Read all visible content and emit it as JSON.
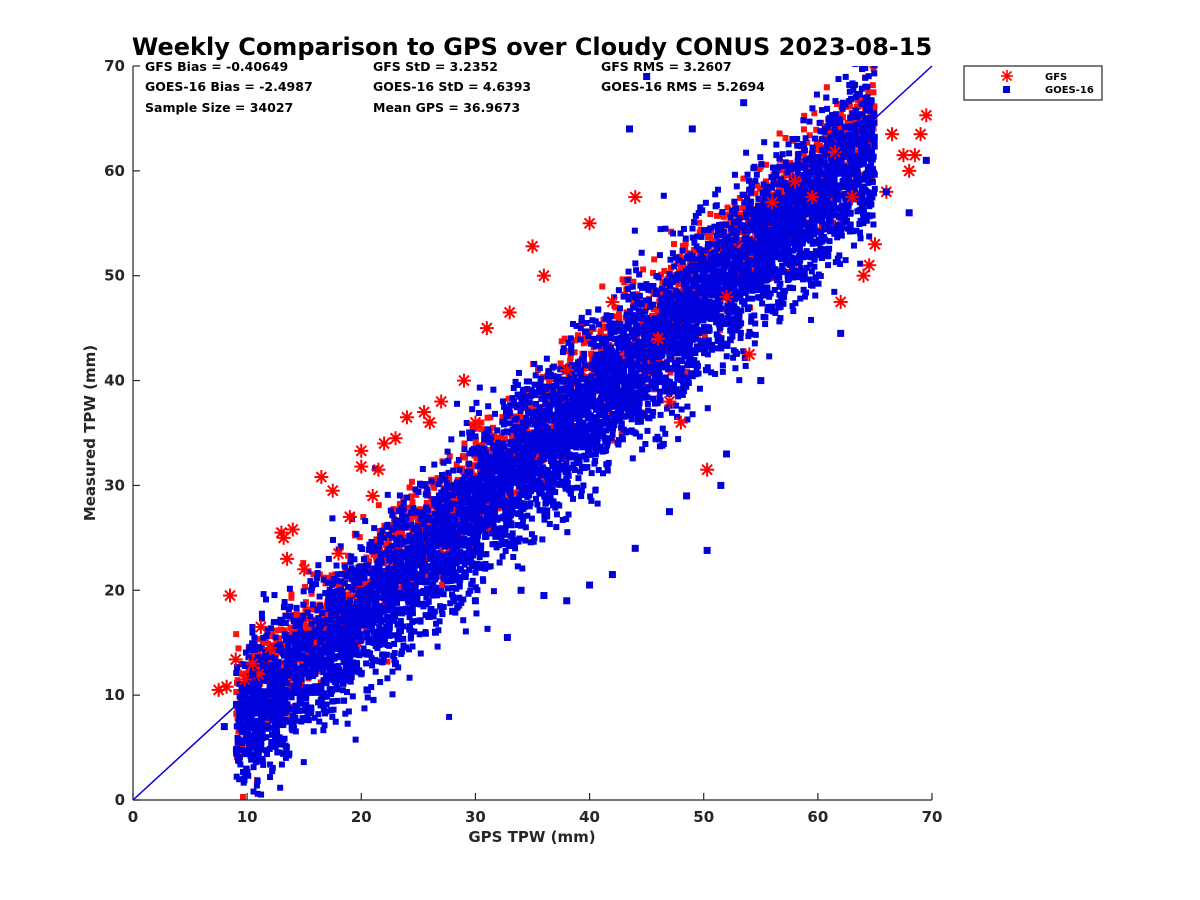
{
  "chart_data": {
    "type": "scatter",
    "title": "Weekly Comparison to GPS over Cloudy CONUS 2023-08-15",
    "xlabel": "GPS TPW (mm)",
    "ylabel": "Measured TPW (mm)",
    "xlim": [
      0,
      70
    ],
    "ylim": [
      0,
      70
    ],
    "xticks": [
      "0",
      "10",
      "20",
      "30",
      "40",
      "50",
      "60",
      "70"
    ],
    "yticks": [
      "0",
      "10",
      "20",
      "30",
      "40",
      "50",
      "60",
      "70"
    ],
    "grid": false,
    "legend_position": "outside-top-right",
    "stats": [
      [
        "GFS Bias = -0.40649",
        "GFS StD = 3.2352",
        "GFS RMS = 3.2607"
      ],
      [
        "GOES-16 Bias = -2.4987",
        "GOES-16 StD = 4.6393",
        "GOES-16 RMS = 5.2694"
      ],
      [
        "Sample Size = 34027",
        "Mean GPS = 36.9673",
        ""
      ]
    ],
    "reference_line": {
      "x": [
        0,
        70
      ],
      "y": [
        0,
        70
      ],
      "color": "#0000dd"
    },
    "series": [
      {
        "name": "GFS",
        "marker": "asterisk",
        "color": "#ff0000",
        "x": [
          7.5,
          8.2,
          8.5,
          9.0,
          9.8,
          10.5,
          11.0,
          11.2,
          12.0,
          13.0,
          13.2,
          13.5,
          14.0,
          15.0,
          16.5,
          17.5,
          18.0,
          19.0,
          20.0,
          20.0,
          21.0,
          21.5,
          22.0,
          23.0,
          24.0,
          25.5,
          26.0,
          27.0,
          29.0,
          31.0,
          33.0,
          35.0,
          36.0,
          40.0,
          44.0,
          47.0,
          48.0,
          50.3,
          54.0,
          56.0,
          58.0,
          59.5,
          61.5,
          62.0,
          63.0,
          64.0,
          64.5,
          65.0,
          66.0,
          66.5,
          67.5,
          68.0,
          68.5,
          69.0,
          69.5,
          52.0,
          38.0,
          42.0,
          46.0,
          30.0
        ],
        "y": [
          10.5,
          10.8,
          19.5,
          13.4,
          11.5,
          13.0,
          12.0,
          16.5,
          14.5,
          25.5,
          25.0,
          23.0,
          25.8,
          22.0,
          30.8,
          29.5,
          23.5,
          27.0,
          33.3,
          31.8,
          29.0,
          31.5,
          34.0,
          34.5,
          36.5,
          37.0,
          36.0,
          38.0,
          40.0,
          45.0,
          46.5,
          52.8,
          50.0,
          55.0,
          57.5,
          38.0,
          36.0,
          31.5,
          42.5,
          57.0,
          59.0,
          57.5,
          61.8,
          47.5,
          57.5,
          50.0,
          51.0,
          53.0,
          58.0,
          63.5,
          61.5,
          60.0,
          61.5,
          63.5,
          65.3,
          48.0,
          41.0,
          47.5,
          44.0,
          36.0
        ]
      },
      {
        "name": "GOES-16",
        "marker": "square",
        "color": "#0000dd",
        "x": [
          8.0,
          9.5,
          10.5,
          11.0,
          12.5,
          14.0,
          15.0,
          16.5,
          18.0,
          20.5,
          23.0,
          26.5,
          28.0,
          30.0,
          32.8,
          34.0,
          36.0,
          38.0,
          40.0,
          42.0,
          44.0,
          47.0,
          48.5,
          50.3,
          51.5,
          52.0,
          55.0,
          56.0,
          57.0,
          60.0,
          62.0,
          64.0,
          66.0,
          68.0,
          69.5,
          45.0,
          43.5,
          49.0,
          53.5
        ],
        "y": [
          7.0,
          6.8,
          12.0,
          7.5,
          7.2,
          8.0,
          10.0,
          9.5,
          11.5,
          10.5,
          13.0,
          16.0,
          18.0,
          19.0,
          15.5,
          20.0,
          19.5,
          19.0,
          20.5,
          21.5,
          24.0,
          27.5,
          29.0,
          23.8,
          30.0,
          33.0,
          40.0,
          47.0,
          48.5,
          52.0,
          44.5,
          56.0,
          58.0,
          56.0,
          61.0,
          69.0,
          64.0,
          64.0,
          66.5
        ]
      }
    ],
    "cloud_note": "dense point cloud approximated between the series points"
  }
}
